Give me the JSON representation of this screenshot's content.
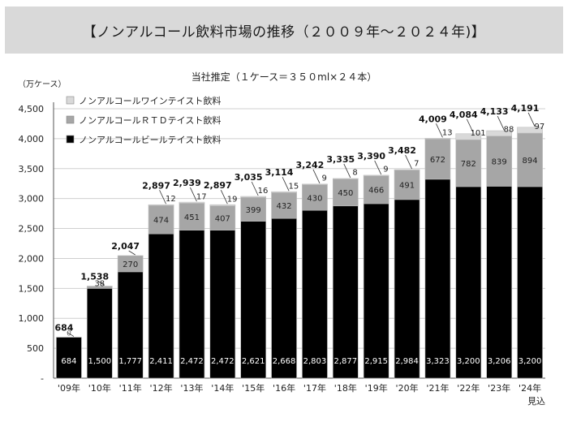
{
  "header": {
    "title": "【ノンアルコール飲料市場の推移（２００９年～２０２４年)】"
  },
  "chart_data": {
    "type": "bar",
    "stacked": true,
    "subtitle": "当社推定（１ケース＝３５０ml×２４本）",
    "ylabel": "（万ケース）",
    "ylim": [
      0,
      4500
    ],
    "yticks": [
      "-",
      "500",
      "1,000",
      "1,500",
      "2,000",
      "2,500",
      "3,000",
      "3,500",
      "4,000",
      "4,500"
    ],
    "grid": true,
    "legend_position": "top-left",
    "categories": [
      "'09年",
      "'10年",
      "'11年",
      "'12年",
      "'13年",
      "'14年",
      "'15年",
      "'16年",
      "'17年",
      "'18年",
      "'19年",
      "'20年",
      "'21年",
      "'22年",
      "'23年",
      "'24年"
    ],
    "category_notes": [
      "",
      "",
      "",
      "",
      "",
      "",
      "",
      "",
      "",
      "",
      "",
      "",
      "",
      "",
      "",
      "見込"
    ],
    "series": [
      {
        "name": "ノンアルコールビールテイスト飲料",
        "color": "#000000",
        "values": [
          684,
          1500,
          1777,
          2411,
          2472,
          2472,
          2621,
          2668,
          2803,
          2877,
          2915,
          2984,
          3323,
          3200,
          3206,
          3200
        ],
        "labels": [
          "684",
          "1,500",
          "1,777",
          "2,411",
          "2,472",
          "2,472",
          "2,621",
          "2,668",
          "2,803",
          "2,877",
          "2,915",
          "2,984",
          "3,323",
          "3,200",
          "3,206",
          "3,200"
        ]
      },
      {
        "name": "ノンアルコールＲＴＤテイスト飲料",
        "color": "#a6a6a6",
        "values": [
          0,
          38,
          270,
          474,
          451,
          407,
          399,
          432,
          430,
          450,
          466,
          491,
          672,
          782,
          839,
          894
        ],
        "labels": [
          "0",
          "38",
          "270",
          "474",
          "451",
          "407",
          "399",
          "432",
          "430",
          "450",
          "466",
          "491",
          "672",
          "782",
          "839",
          "894"
        ]
      },
      {
        "name": "ノンアルコールワインテイスト飲料",
        "color": "#d9d9d9",
        "values": [
          0,
          0,
          0,
          12,
          17,
          19,
          16,
          15,
          9,
          8,
          9,
          7,
          13,
          101,
          88,
          97
        ],
        "labels": [
          "",
          "",
          "",
          "12",
          "17",
          "19",
          "16",
          "15",
          "9",
          "8",
          "9",
          "7",
          "13",
          "101",
          "88",
          "97"
        ]
      }
    ],
    "totals": [
      "684",
      "1,538",
      "2,047",
      "2,897",
      "2,939",
      "2,897",
      "3,035",
      "3,114",
      "3,242",
      "3,335",
      "3,390",
      "3,482",
      "4,009",
      "4,084",
      "4,133",
      "4,191"
    ]
  }
}
